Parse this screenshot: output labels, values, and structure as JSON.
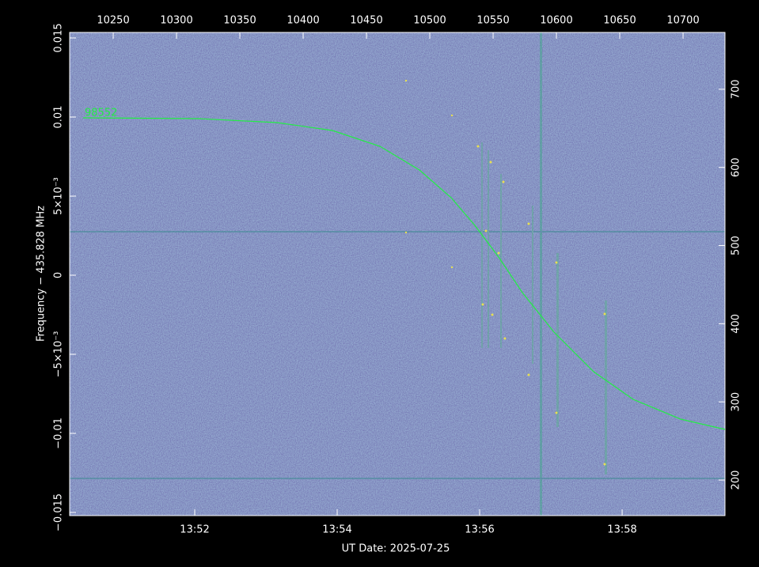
{
  "chart_data": {
    "type": "line",
    "xlabel": "UT Date: 2025-07-25",
    "ylabel": "Frequency − 435.828 MHz",
    "xlim": [
      830.244,
      839.444
    ],
    "xticks": [
      {
        "value": 832,
        "label": "13:52"
      },
      {
        "value": 834,
        "label": "13:54"
      },
      {
        "value": 836,
        "label": "13:56"
      },
      {
        "value": 838,
        "label": "13:58"
      }
    ],
    "ylim": [
      -0.0152,
      0.01535
    ],
    "yticks": [
      {
        "value": -0.015,
        "label": "−0.015"
      },
      {
        "value": -0.01,
        "label": "−0.01"
      },
      {
        "value": -0.005,
        "label": "−5×10⁻³"
      },
      0,
      {
        "value": 0.005,
        "label": "5×10⁻³"
      },
      0.01,
      0.015
    ],
    "x2lim": [
      10215.6,
      10733.1
    ],
    "x2ticks": [
      10250,
      10300,
      10350,
      10400,
      10450,
      10500,
      10550,
      10600,
      10650,
      10700
    ],
    "y2lim": [
      154.5,
      772.7
    ],
    "y2ticks": [
      200,
      300,
      400,
      500,
      600,
      700
    ],
    "series": [
      {
        "name": "98552",
        "color": "#22ee44",
        "x": [
          830.433,
          832.044,
          833.155,
          833.933,
          834.6,
          835.155,
          835.6,
          835.933,
          836.266,
          836.6,
          837.044,
          837.6,
          838.155,
          838.822,
          839.444
        ],
        "values": [
          0.00995,
          0.0099,
          0.00965,
          0.00915,
          0.00815,
          0.00665,
          0.0049,
          0.00315,
          0.00115,
          -0.0011,
          -0.0036,
          -0.0061,
          -0.00785,
          -0.0091,
          -0.00975
        ]
      }
    ]
  }
}
